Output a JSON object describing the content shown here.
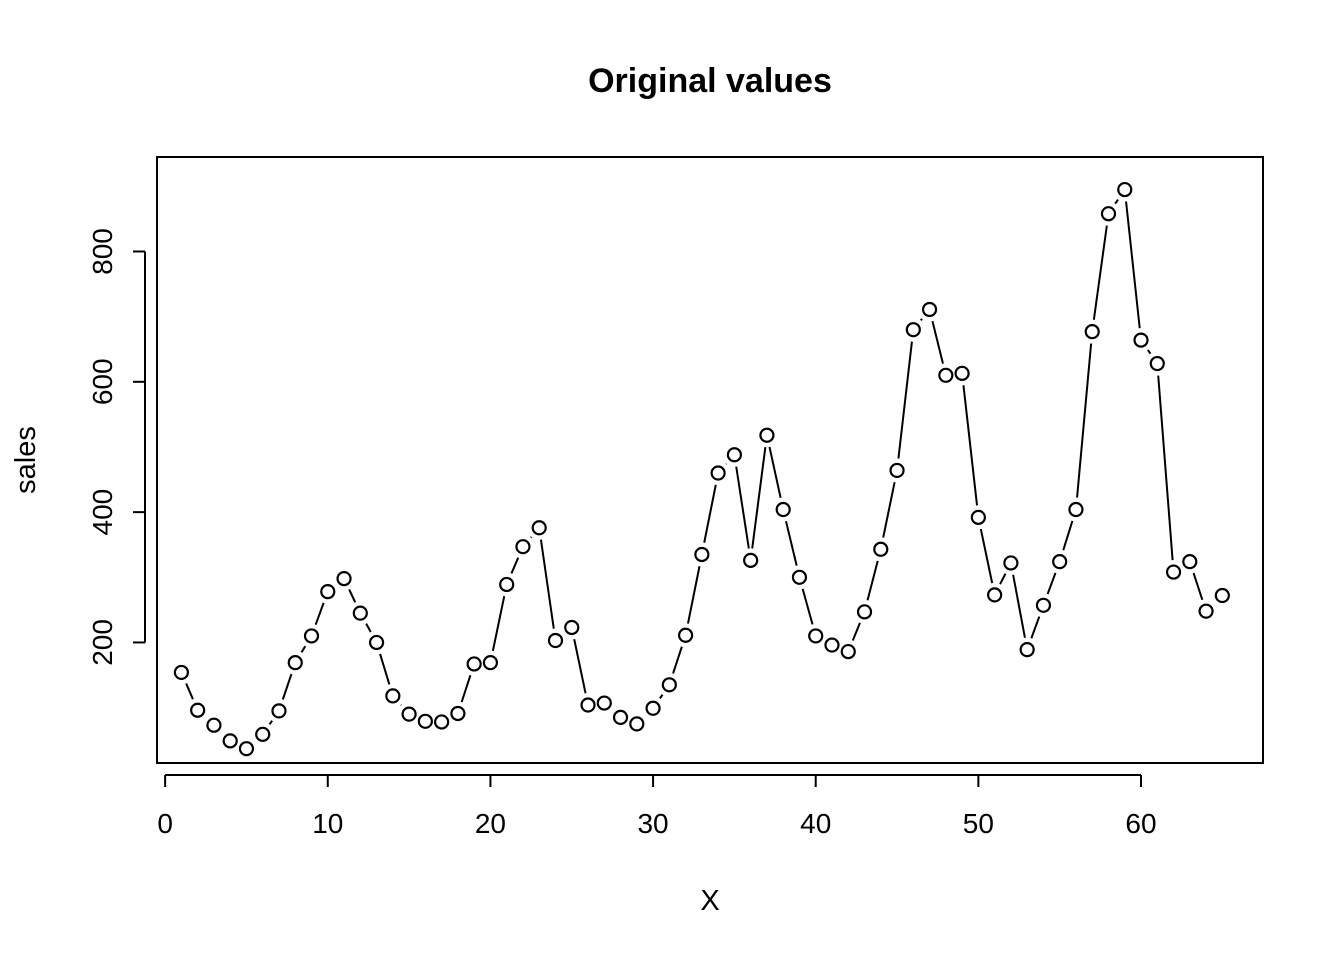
{
  "chart_data": {
    "type": "line",
    "style": "both points and lines (type b)",
    "title": "Original values",
    "xlabel": "X",
    "ylabel": "sales",
    "xlim": [
      -0.5,
      67.5
    ],
    "ylim": [
      15,
      945
    ],
    "x_ticks": [
      0,
      10,
      20,
      30,
      40,
      50,
      60
    ],
    "x_tick_labels": [
      "0",
      "10",
      "20",
      "30",
      "40",
      "50",
      "60"
    ],
    "y_ticks": [
      200,
      400,
      600,
      800
    ],
    "y_tick_labels": [
      "200",
      "400",
      "600",
      "800"
    ],
    "grid": false,
    "legend": "none",
    "series": [
      {
        "x": [
          1,
          2,
          3,
          4,
          5,
          6,
          7,
          8,
          9,
          10,
          11,
          12,
          13,
          14,
          15,
          16,
          17,
          18,
          19,
          20,
          21,
          22,
          23,
          24,
          25,
          26,
          27,
          28,
          29,
          30,
          31,
          32,
          33,
          34,
          35,
          36,
          37,
          38,
          39,
          40,
          41,
          42,
          43,
          44,
          45,
          46,
          47,
          48,
          49,
          50,
          51,
          52,
          53,
          54,
          55,
          56,
          57,
          58,
          59,
          60,
          61,
          62,
          63,
          64,
          65
        ],
        "values": [
          154,
          96,
          73,
          49,
          37,
          59,
          95,
          169,
          210,
          278,
          298,
          245,
          200,
          118,
          90,
          79,
          78,
          91,
          167,
          169,
          289,
          347,
          376,
          203,
          223,
          104,
          107,
          85,
          75,
          99,
          135,
          211,
          335,
          460,
          488,
          326,
          518,
          404,
          300,
          210,
          196,
          186,
          247,
          343,
          464,
          680,
          711,
          610,
          613,
          392,
          273,
          322,
          189,
          257,
          324,
          404,
          677,
          858,
          895,
          664,
          628,
          308,
          324,
          248,
          272
        ]
      }
    ]
  }
}
